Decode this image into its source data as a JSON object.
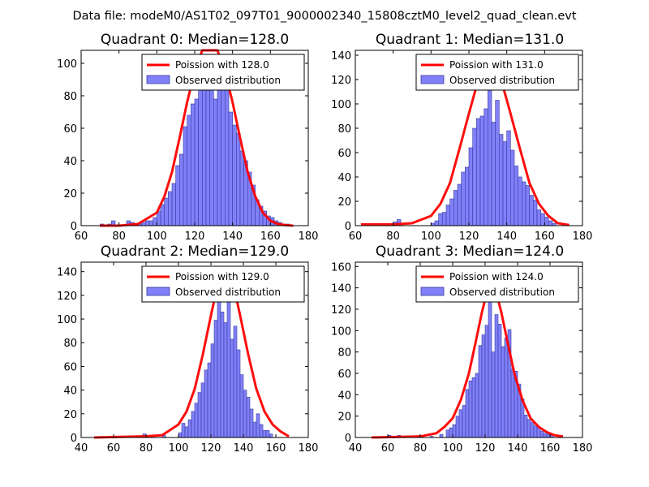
{
  "figure": {
    "suptitle": "Data file: modeM0/AS1T02_097T01_9000002340_15808cztM0_level2_quad_clean.evt"
  },
  "colors": {
    "bar_fill": "#8080f8",
    "bar_edge": "#3a3aa0",
    "poisson_line": "#ff0000",
    "axes": "#000000",
    "legend_edge": "#000000"
  },
  "chart_data": [
    {
      "type": "bar",
      "title": "Quadrant 0: Median=128.0",
      "median": 128.0,
      "xlim": [
        60,
        180
      ],
      "ylim": [
        0,
        108
      ],
      "xticks": [
        60,
        80,
        100,
        120,
        140,
        160,
        180
      ],
      "yticks": [
        0,
        20,
        40,
        60,
        80,
        100
      ],
      "bin_width": 2,
      "legend": {
        "placement": "top-right",
        "line_label": "Poission with 128.0",
        "bar_label": "Observed distribution"
      },
      "bars": {
        "centers": [
          71,
          75,
          77,
          85,
          87,
          89,
          91,
          93,
          95,
          97,
          99,
          101,
          103,
          105,
          107,
          109,
          111,
          113,
          115,
          117,
          119,
          121,
          123,
          125,
          127,
          129,
          131,
          133,
          135,
          137,
          139,
          141,
          143,
          145,
          147,
          149,
          151,
          153,
          155,
          157,
          159,
          161,
          163,
          165,
          167,
          169
        ],
        "values": [
          1,
          1,
          3,
          3,
          2,
          1,
          1,
          2,
          3,
          3,
          5,
          9,
          13,
          17,
          21,
          26,
          37,
          44,
          61,
          68,
          75,
          78,
          88,
          90,
          100,
          87,
          78,
          95,
          88,
          87,
          70,
          62,
          57,
          46,
          40,
          33,
          25,
          16,
          12,
          9,
          6,
          5,
          3,
          2,
          1,
          1
        ]
      },
      "poisson": {
        "x": [
          70,
          80,
          90,
          100,
          104,
          108,
          112,
          116,
          120,
          124,
          126,
          128,
          130,
          132,
          136,
          140,
          144,
          148,
          152,
          156,
          160,
          164,
          168,
          172
        ],
        "y": [
          0,
          0,
          1,
          8,
          18,
          33,
          54,
          76,
          95,
          108,
          111,
          112,
          111,
          108,
          95,
          76,
          54,
          33,
          18,
          8,
          3,
          1,
          0.3,
          0
        ]
      }
    },
    {
      "type": "bar",
      "title": "Quadrant 1: Median=131.0",
      "median": 131.0,
      "xlim": [
        60,
        180
      ],
      "ylim": [
        0,
        144
      ],
      "xticks": [
        60,
        80,
        100,
        120,
        140,
        160,
        180
      ],
      "yticks": [
        0,
        20,
        40,
        60,
        80,
        100,
        120,
        140
      ],
      "bin_width": 2,
      "legend": {
        "placement": "top-right",
        "line_label": "Poission with 131.0",
        "bar_label": "Observed distribution"
      },
      "bars": {
        "centers": [
          81,
          83,
          101,
          103,
          105,
          107,
          109,
          111,
          113,
          115,
          117,
          119,
          121,
          123,
          125,
          127,
          129,
          131,
          133,
          135,
          137,
          139,
          141,
          143,
          145,
          147,
          149,
          151,
          153,
          155,
          157,
          159,
          161,
          163,
          165
        ],
        "values": [
          3,
          5,
          2,
          4,
          10,
          11,
          17,
          22,
          29,
          34,
          44,
          48,
          64,
          80,
          88,
          90,
          96,
          128,
          85,
          103,
          75,
          69,
          78,
          62,
          49,
          40,
          36,
          33,
          25,
          21,
          13,
          10,
          7,
          4,
          2
        ]
      },
      "poisson": {
        "x": [
          63,
          80,
          90,
          100,
          105,
          110,
          115,
          120,
          125,
          128,
          131,
          134,
          137,
          142,
          147,
          152,
          157,
          162,
          167,
          173
        ],
        "y": [
          1,
          1,
          2,
          8,
          18,
          35,
          63,
          92,
          120,
          132,
          137,
          132,
          120,
          92,
          63,
          35,
          18,
          8,
          2,
          0.5
        ]
      }
    },
    {
      "type": "bar",
      "title": "Quadrant 2: Median=129.0",
      "median": 129.0,
      "xlim": [
        40,
        180
      ],
      "ylim": [
        0,
        148
      ],
      "xticks": [
        40,
        60,
        80,
        100,
        120,
        140,
        160,
        180
      ],
      "yticks": [
        0,
        20,
        40,
        60,
        80,
        100,
        120,
        140
      ],
      "bin_width": 2,
      "legend": {
        "placement": "top-right",
        "line_label": "Poission with 129.0",
        "bar_label": "Observed distribution"
      },
      "bars": {
        "centers": [
          79,
          91,
          101,
          103,
          105,
          107,
          109,
          111,
          113,
          115,
          117,
          119,
          121,
          123,
          125,
          127,
          129,
          131,
          133,
          135,
          137,
          139,
          141,
          143,
          145,
          147,
          149,
          151,
          153,
          155,
          157
        ],
        "values": [
          3,
          2,
          4,
          12,
          9,
          15,
          22,
          29,
          38,
          46,
          57,
          63,
          79,
          99,
          115,
          106,
          97,
          142,
          83,
          94,
          74,
          53,
          40,
          34,
          24,
          13,
          20,
          11,
          6,
          6,
          3
        ]
      },
      "poisson": {
        "x": [
          48,
          80,
          90,
          100,
          105,
          110,
          115,
          120,
          124,
          127,
          129,
          131,
          134,
          138,
          143,
          148,
          153,
          158,
          163,
          168
        ],
        "y": [
          0,
          1,
          2,
          11,
          22,
          41,
          70,
          103,
          128,
          139,
          142,
          139,
          128,
          103,
          70,
          41,
          22,
          11,
          5,
          1
        ]
      }
    },
    {
      "type": "bar",
      "title": "Quadrant 3: Median=124.0",
      "median": 124.0,
      "xlim": [
        40,
        180
      ],
      "ylim": [
        0,
        164
      ],
      "xticks": [
        40,
        60,
        80,
        100,
        120,
        140,
        160,
        180
      ],
      "yticks": [
        0,
        20,
        40,
        60,
        80,
        100,
        120,
        140,
        160
      ],
      "bin_width": 2,
      "legend": {
        "placement": "top-right",
        "line_label": "Poission with 124.0",
        "bar_label": "Observed distribution"
      },
      "bars": {
        "centers": [
          61,
          67,
          87,
          93,
          97,
          99,
          101,
          103,
          105,
          107,
          109,
          111,
          113,
          115,
          117,
          119,
          121,
          123,
          125,
          127,
          129,
          131,
          133,
          135,
          137,
          139,
          141,
          143,
          145,
          147,
          149,
          151,
          153,
          155,
          157,
          159,
          161
        ],
        "values": [
          2,
          2,
          1,
          3,
          7,
          9,
          12,
          20,
          26,
          30,
          45,
          53,
          56,
          60,
          86,
          96,
          105,
          128,
          80,
          115,
          106,
          85,
          93,
          101,
          64,
          62,
          50,
          36,
          21,
          17,
          14,
          11,
          10,
          6,
          4,
          3,
          2
        ]
      },
      "poisson": {
        "x": [
          50,
          80,
          90,
          95,
          100,
          105,
          110,
          114,
          118,
          121,
          124,
          127,
          130,
          134,
          138,
          143,
          148,
          153,
          158,
          163,
          168
        ],
        "y": [
          0,
          1,
          4,
          10,
          18,
          35,
          60,
          88,
          117,
          135,
          141,
          135,
          117,
          88,
          60,
          35,
          18,
          10,
          5,
          2,
          1
        ]
      }
    }
  ]
}
